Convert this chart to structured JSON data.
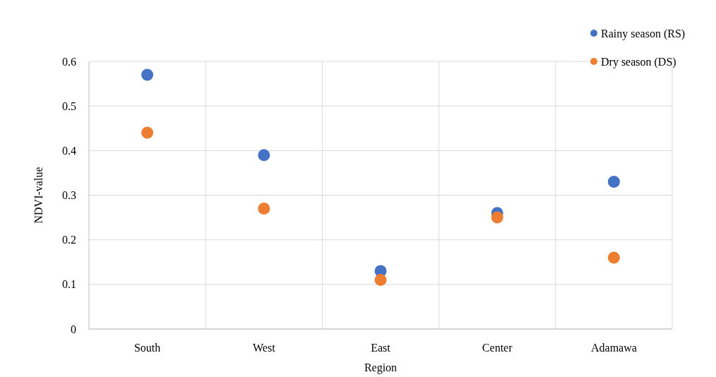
{
  "chart_data": {
    "type": "scatter",
    "xlabel": "Region",
    "ylabel": "NDVI-value",
    "categories": [
      "South",
      "West",
      "East",
      "Center",
      "Adamawa"
    ],
    "series": [
      {
        "name": "Rainy season (RS)",
        "color": "#4472c4",
        "values": [
          0.57,
          0.39,
          0.13,
          0.26,
          0.33
        ]
      },
      {
        "name": "Dry season (DS)",
        "color": "#ed7d31",
        "values": [
          0.44,
          0.27,
          0.11,
          0.25,
          0.16
        ]
      }
    ],
    "ylim": [
      0,
      0.6
    ],
    "yticks": [
      0,
      0.1,
      0.2,
      0.3,
      0.4,
      0.5,
      0.6
    ],
    "grid": true,
    "legend": "top right",
    "marker": "circle"
  }
}
